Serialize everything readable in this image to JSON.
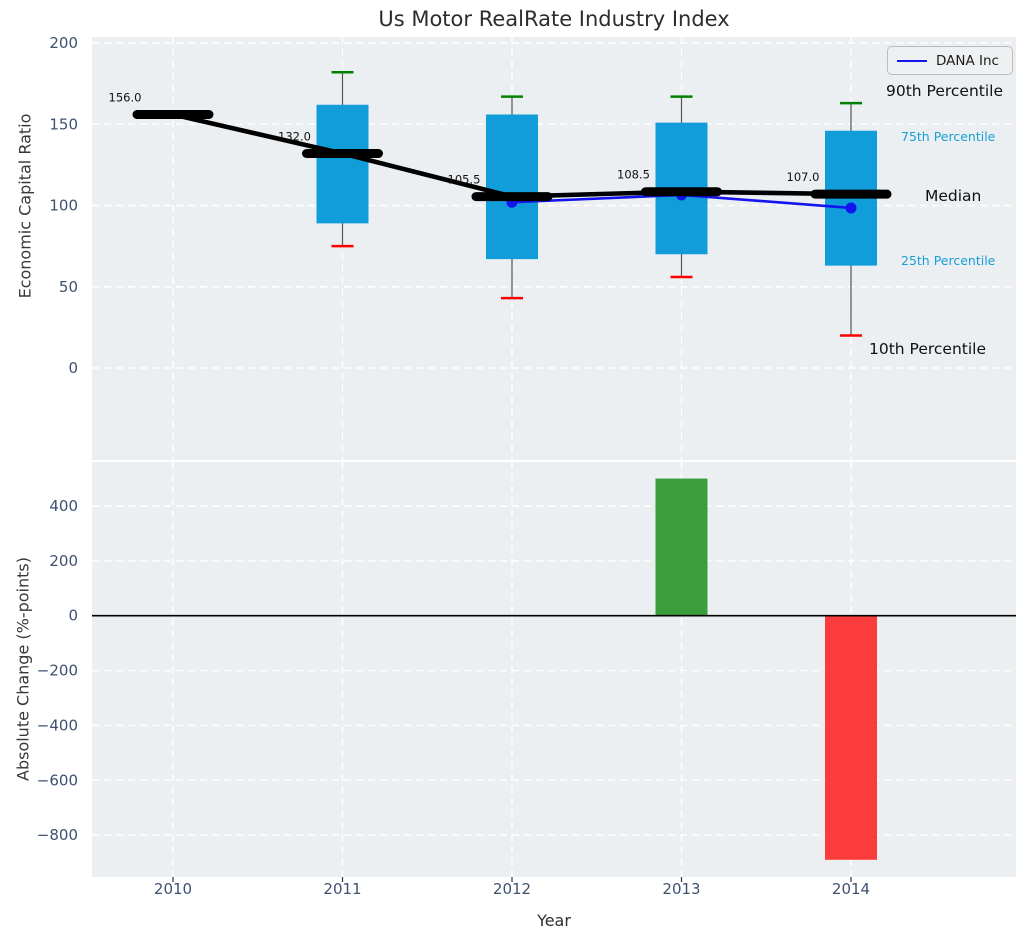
{
  "title": "Us Motor RealRate Industry Index",
  "legend": {
    "label": "DANA Inc"
  },
  "percentile_labels": {
    "p90": "90th Percentile",
    "p75": "75th Percentile",
    "median": "Median",
    "p25": "25th Percentile",
    "p10": "10th Percentile"
  },
  "colors": {
    "plot_bg": "#ebeff1",
    "grid": "#ffffff",
    "tick_label": "#3f5170",
    "box_fill": "#119dd9",
    "whisker_line": "#555555",
    "p90_cap": "#008000",
    "p10_cap": "#ff0000",
    "median_line": "#000000",
    "company_line": "#1414f0",
    "positive_bar": "#3a9e3d",
    "negative_bar": "#fb3c3c",
    "zero_line": "#000000",
    "annotation_cyan": "#189fd4"
  },
  "chart_data": [
    {
      "type": "box",
      "title": "Us Motor RealRate Industry Index",
      "ylabel": "Economic Capital Ratio",
      "xlabel": "Year",
      "categories": [
        "2010",
        "2011",
        "2012",
        "2013",
        "2014"
      ],
      "yticks": [
        200,
        150,
        100,
        50,
        0
      ],
      "ylim": [
        -57,
        204
      ],
      "grid": true,
      "legend_position": "upper right",
      "boxes": [
        {
          "year": "2010",
          "median": 156.0,
          "q1": null,
          "q3": null,
          "p10": null,
          "p90": null
        },
        {
          "year": "2011",
          "median": 132.0,
          "q1": 89,
          "q3": 162,
          "p10": 75,
          "p90": 182
        },
        {
          "year": "2012",
          "median": 105.5,
          "q1": 67,
          "q3": 156,
          "p10": 43,
          "p90": 167
        },
        {
          "year": "2013",
          "median": 108.5,
          "q1": 70,
          "q3": 151,
          "p10": 56,
          "p90": 167
        },
        {
          "year": "2014",
          "median": 107.0,
          "q1": 63,
          "q3": 146,
          "p10": 20,
          "p90": 163
        }
      ],
      "median_labels": [
        "156.0",
        "132.0",
        "105.5",
        "108.5",
        "107.0"
      ],
      "series": [
        {
          "name": "DANA Inc",
          "x": [
            "2012",
            "2013",
            "2014"
          ],
          "values": [
            102,
            106.5,
            98.5
          ]
        }
      ]
    },
    {
      "type": "bar",
      "ylabel": "Absolute Change (%-points)",
      "xlabel": "Year",
      "categories": [
        "2010",
        "2011",
        "2012",
        "2013",
        "2014"
      ],
      "values": [
        null,
        null,
        null,
        500,
        -890
      ],
      "yticks": [
        400,
        200,
        0,
        -200,
        -400,
        -600,
        -800
      ],
      "ylim": [
        -953,
        560
      ],
      "grid": true
    }
  ]
}
